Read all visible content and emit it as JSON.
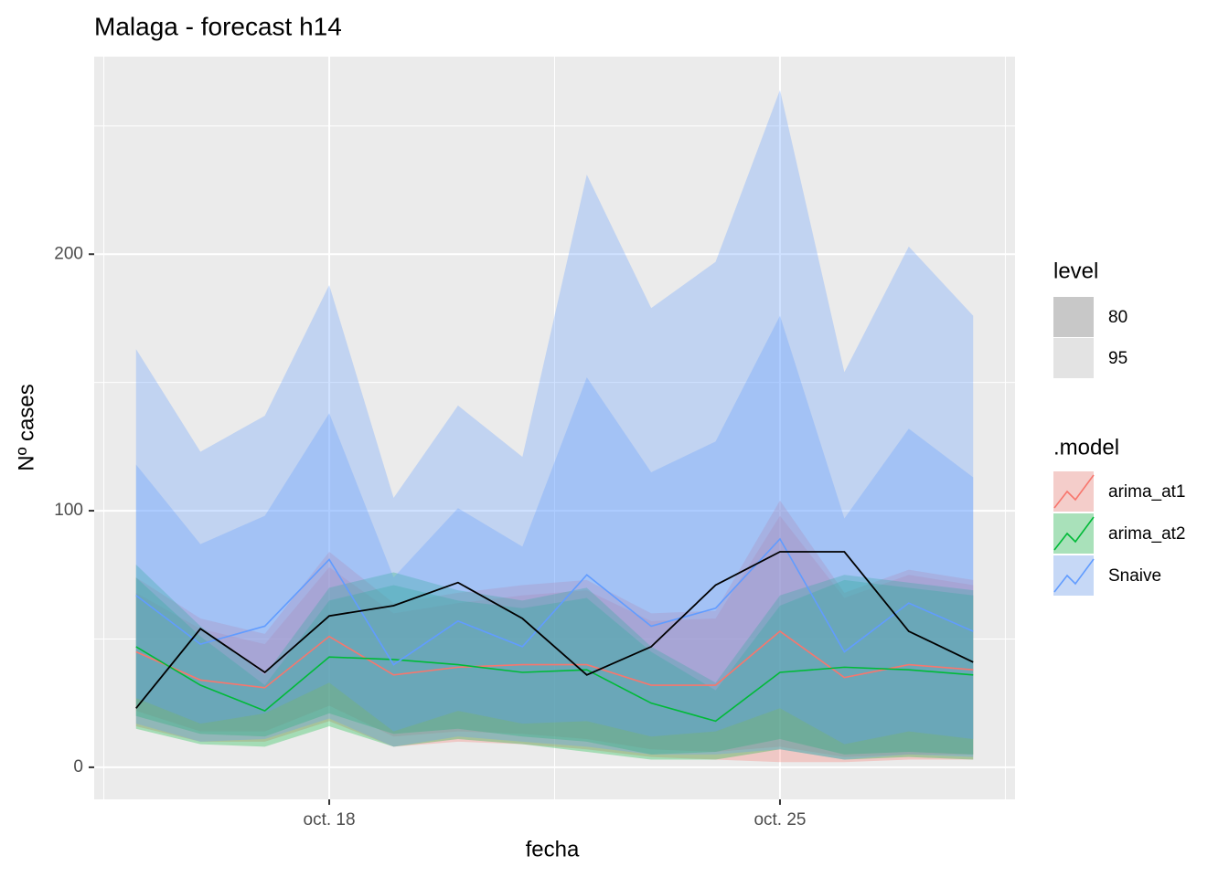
{
  "chart_data": {
    "type": "line",
    "title": "Malaga - forecast h14",
    "x_label": "fecha",
    "y_label": "Nº cases",
    "x": [
      15,
      16,
      17,
      18,
      19,
      20,
      21,
      22,
      23,
      24,
      25,
      26,
      27,
      28
    ],
    "xlim": [
      14.35,
      28.65
    ],
    "xticks": [
      {
        "value": 18,
        "label": "oct. 18"
      },
      {
        "value": 25,
        "label": "oct. 25"
      }
    ],
    "xminor": [
      14.5,
      21.5,
      28.5
    ],
    "ylim": [
      -12.5,
      277
    ],
    "yticks": [
      0,
      100,
      200
    ],
    "yminor": [
      50,
      150,
      250
    ],
    "grid": true,
    "actual": {
      "color": "#000000",
      "values": [
        23,
        54,
        37,
        59,
        63,
        72,
        58,
        36,
        47,
        71,
        84,
        84,
        53,
        41
      ]
    },
    "level_title": "level",
    "levels": [
      {
        "name": "80",
        "color": "#c8c8c8"
      },
      {
        "name": "95",
        "color": "#e3e3e3"
      }
    ],
    "model_title": ".model",
    "series": [
      {
        "name": "arima_at1",
        "color": "#F8766D",
        "values": [
          45,
          34,
          31,
          51,
          36,
          39,
          40,
          40,
          32,
          32,
          53,
          35,
          40,
          38
        ],
        "lo80": [
          22,
          14,
          14,
          24,
          12,
          14,
          13,
          11,
          7,
          6,
          8,
          4,
          5,
          5
        ],
        "hi80": [
          68,
          54,
          48,
          78,
          60,
          64,
          67,
          69,
          57,
          58,
          98,
          66,
          75,
          71
        ],
        "lo95": [
          16,
          10,
          10,
          18,
          8,
          10,
          9,
          7,
          4,
          3,
          2,
          2,
          3,
          3
        ],
        "hi95": [
          74,
          58,
          52,
          84,
          64,
          68,
          71,
          73,
          60,
          61,
          104,
          68,
          77,
          73
        ]
      },
      {
        "name": "arima_at2",
        "color": "#00BA38",
        "values": [
          47,
          32,
          22,
          43,
          42,
          40,
          37,
          38,
          25,
          18,
          37,
          39,
          38,
          36
        ],
        "lo80": [
          20,
          13,
          12,
          21,
          13,
          15,
          12,
          10,
          5,
          6,
          11,
          5,
          6,
          5
        ],
        "hi80": [
          74,
          51,
          32,
          65,
          71,
          65,
          62,
          66,
          45,
          30,
          63,
          73,
          70,
          67
        ],
        "lo95": [
          15,
          9,
          8,
          16,
          8,
          11,
          9,
          6,
          3,
          3,
          7,
          3,
          4,
          3
        ],
        "hi95": [
          79,
          55,
          36,
          70,
          76,
          69,
          65,
          70,
          47,
          33,
          67,
          75,
          72,
          69
        ]
      },
      {
        "name": "Snaive",
        "color": "#619CFF",
        "values": [
          67,
          48,
          55,
          81,
          40,
          57,
          47,
          75,
          55,
          62,
          89,
          45,
          64,
          53
        ],
        "lo80": [
          27,
          17,
          21,
          33,
          14,
          22,
          17,
          18,
          12,
          14,
          23,
          9,
          14,
          11
        ],
        "hi80": [
          118,
          87,
          98,
          138,
          74,
          101,
          86,
          152,
          115,
          127,
          176,
          97,
          132,
          113
        ],
        "lo95": [
          17,
          10,
          11,
          19,
          8,
          12,
          10,
          8,
          5,
          5,
          7,
          3,
          5,
          4
        ],
        "hi95": [
          163,
          123,
          137,
          188,
          105,
          141,
          121,
          231,
          179,
          197,
          264,
          154,
          203,
          176
        ]
      }
    ]
  }
}
